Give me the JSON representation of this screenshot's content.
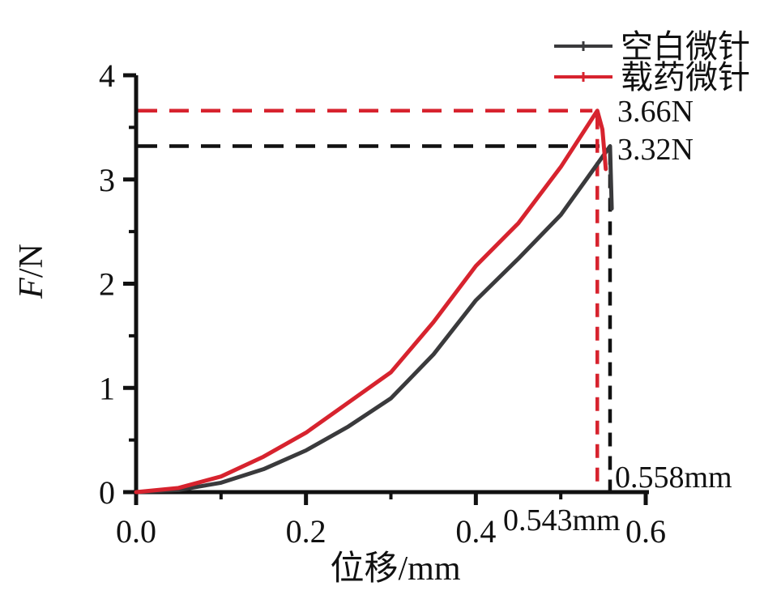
{
  "figure": {
    "description_background": "#ffffff"
  },
  "colors": {
    "accent_red": "#d7232e",
    "curve_black": "#3a3a3c",
    "axis_black": "#111111",
    "background": "#ffffff"
  },
  "legend": {
    "items": [
      {
        "label": "空白微针",
        "color": "#3a3a3c"
      },
      {
        "label": "载药微针",
        "color": "#d7232e"
      }
    ]
  },
  "chart_data": {
    "type": "line",
    "title": "",
    "xlabel": "位移/mm",
    "ylabel": "F/N",
    "ylabel_italic": "F",
    "ylabel_rest": "/N",
    "xlim": [
      0,
      0.6
    ],
    "ylim": [
      0,
      4
    ],
    "grid": false,
    "legend_position": "top-right",
    "x_ticks": {
      "values": [
        0,
        0.2,
        0.4,
        0.6
      ],
      "labels": [
        "0.0",
        "0.2",
        "0.4",
        "0.6"
      ],
      "minor": [
        0.1,
        0.3,
        0.5
      ]
    },
    "y_ticks": {
      "values": [
        0,
        1,
        2,
        3,
        4
      ],
      "labels": [
        "0",
        "1",
        "2",
        "3",
        "4"
      ],
      "minor": [
        0.5,
        1.5,
        2.5,
        3.5
      ]
    },
    "series": [
      {
        "name": "空白微针",
        "color": "#3a3a3c",
        "peak_force_N": 3.32,
        "peak_displacement_mm": 0.558,
        "x": [
          0,
          0.05,
          0.1,
          0.15,
          0.2,
          0.25,
          0.3,
          0.35,
          0.4,
          0.45,
          0.5,
          0.53,
          0.558,
          0.56
        ],
        "y": [
          0,
          0.02,
          0.09,
          0.22,
          0.4,
          0.63,
          0.9,
          1.32,
          1.84,
          2.24,
          2.66,
          3.0,
          3.32,
          2.72
        ]
      },
      {
        "name": "载药微针",
        "color": "#d7232e",
        "peak_force_N": 3.66,
        "peak_displacement_mm": 0.543,
        "x": [
          0,
          0.05,
          0.1,
          0.15,
          0.2,
          0.25,
          0.3,
          0.35,
          0.4,
          0.45,
          0.5,
          0.543,
          0.549,
          0.553
        ],
        "y": [
          0,
          0.04,
          0.15,
          0.34,
          0.57,
          0.86,
          1.15,
          1.63,
          2.17,
          2.58,
          3.12,
          3.66,
          3.48,
          3.1
        ]
      }
    ],
    "reference_lines": [
      {
        "orientation": "horizontal",
        "value": 3.66,
        "from_x": 0,
        "to_x": 0.543,
        "color": "#d7232e"
      },
      {
        "orientation": "horizontal",
        "value": 3.32,
        "from_x": 0,
        "to_x": 0.558,
        "color": "#111111"
      },
      {
        "orientation": "vertical",
        "value": 0.543,
        "from_y": 0,
        "to_y": 3.66,
        "color": "#d7232e"
      },
      {
        "orientation": "vertical",
        "value": 0.558,
        "from_y": 0,
        "to_y": 3.32,
        "color": "#111111"
      }
    ],
    "annotations": [
      {
        "text": "3.66N",
        "color": "#d7232e",
        "refers_to": "peak force of drug-loaded microneedle"
      },
      {
        "text": "3.32N",
        "color": "#111111",
        "refers_to": "peak force of blank microneedle"
      },
      {
        "text": "0.558mm",
        "color": "#111111",
        "refers_to": "peak displacement of blank microneedle"
      },
      {
        "text": "0.543mm",
        "color": "#d7232e",
        "refers_to": "peak displacement of drug-loaded microneedle"
      }
    ]
  }
}
